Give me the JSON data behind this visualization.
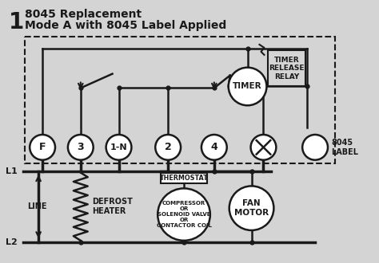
{
  "title_number": "1",
  "title_line1": "8045 Replacement",
  "title_line2": "Mode A with 8045 Label Applied",
  "bg_color": "#d4d4d4",
  "line_color": "#1a1a1a",
  "terminal_labels": [
    "F",
    "3",
    "1-N",
    "2",
    "4",
    "X",
    ""
  ],
  "label_8045": "8045\nLABEL",
  "component_labels": {
    "timer": "TIMER",
    "timer_relay": "TIMER\nRELEASE\nRELAY",
    "thermostat": "THERMOSTAT",
    "defrost": "DEFROST\nHEATER",
    "compressor": "COMPRESSOR\nOR\nSOLENOID VALVE\nOR\nCONTACTOR COIL",
    "fan": "FAN\nMOTOR",
    "line": "LINE",
    "l1": "L1",
    "l2": "L2"
  }
}
